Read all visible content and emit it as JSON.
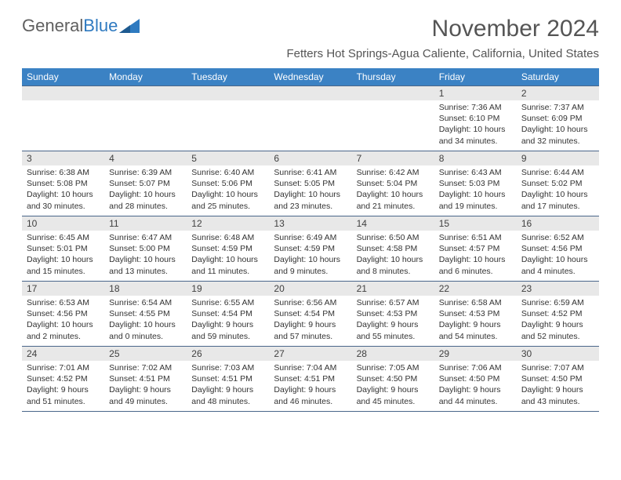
{
  "logo": {
    "text1": "General",
    "text2": "Blue"
  },
  "title": "November 2024",
  "location": "Fetters Hot Springs-Agua Caliente, California, United States",
  "dayNames": [
    "Sunday",
    "Monday",
    "Tuesday",
    "Wednesday",
    "Thursday",
    "Friday",
    "Saturday"
  ],
  "colors": {
    "header_bg": "#3b82c4",
    "header_text": "#ffffff",
    "daynum_bg": "#e8e8e8",
    "border": "#4a668a",
    "logo_gray": "#606060",
    "logo_blue": "#2f7ac0",
    "title_color": "#555555"
  },
  "weeks": [
    [
      {
        "num": "",
        "lines": []
      },
      {
        "num": "",
        "lines": []
      },
      {
        "num": "",
        "lines": []
      },
      {
        "num": "",
        "lines": []
      },
      {
        "num": "",
        "lines": []
      },
      {
        "num": "1",
        "lines": [
          "Sunrise: 7:36 AM",
          "Sunset: 6:10 PM",
          "Daylight: 10 hours and 34 minutes."
        ]
      },
      {
        "num": "2",
        "lines": [
          "Sunrise: 7:37 AM",
          "Sunset: 6:09 PM",
          "Daylight: 10 hours and 32 minutes."
        ]
      }
    ],
    [
      {
        "num": "3",
        "lines": [
          "Sunrise: 6:38 AM",
          "Sunset: 5:08 PM",
          "Daylight: 10 hours and 30 minutes."
        ]
      },
      {
        "num": "4",
        "lines": [
          "Sunrise: 6:39 AM",
          "Sunset: 5:07 PM",
          "Daylight: 10 hours and 28 minutes."
        ]
      },
      {
        "num": "5",
        "lines": [
          "Sunrise: 6:40 AM",
          "Sunset: 5:06 PM",
          "Daylight: 10 hours and 25 minutes."
        ]
      },
      {
        "num": "6",
        "lines": [
          "Sunrise: 6:41 AM",
          "Sunset: 5:05 PM",
          "Daylight: 10 hours and 23 minutes."
        ]
      },
      {
        "num": "7",
        "lines": [
          "Sunrise: 6:42 AM",
          "Sunset: 5:04 PM",
          "Daylight: 10 hours and 21 minutes."
        ]
      },
      {
        "num": "8",
        "lines": [
          "Sunrise: 6:43 AM",
          "Sunset: 5:03 PM",
          "Daylight: 10 hours and 19 minutes."
        ]
      },
      {
        "num": "9",
        "lines": [
          "Sunrise: 6:44 AM",
          "Sunset: 5:02 PM",
          "Daylight: 10 hours and 17 minutes."
        ]
      }
    ],
    [
      {
        "num": "10",
        "lines": [
          "Sunrise: 6:45 AM",
          "Sunset: 5:01 PM",
          "Daylight: 10 hours and 15 minutes."
        ]
      },
      {
        "num": "11",
        "lines": [
          "Sunrise: 6:47 AM",
          "Sunset: 5:00 PM",
          "Daylight: 10 hours and 13 minutes."
        ]
      },
      {
        "num": "12",
        "lines": [
          "Sunrise: 6:48 AM",
          "Sunset: 4:59 PM",
          "Daylight: 10 hours and 11 minutes."
        ]
      },
      {
        "num": "13",
        "lines": [
          "Sunrise: 6:49 AM",
          "Sunset: 4:59 PM",
          "Daylight: 10 hours and 9 minutes."
        ]
      },
      {
        "num": "14",
        "lines": [
          "Sunrise: 6:50 AM",
          "Sunset: 4:58 PM",
          "Daylight: 10 hours and 8 minutes."
        ]
      },
      {
        "num": "15",
        "lines": [
          "Sunrise: 6:51 AM",
          "Sunset: 4:57 PM",
          "Daylight: 10 hours and 6 minutes."
        ]
      },
      {
        "num": "16",
        "lines": [
          "Sunrise: 6:52 AM",
          "Sunset: 4:56 PM",
          "Daylight: 10 hours and 4 minutes."
        ]
      }
    ],
    [
      {
        "num": "17",
        "lines": [
          "Sunrise: 6:53 AM",
          "Sunset: 4:56 PM",
          "Daylight: 10 hours and 2 minutes."
        ]
      },
      {
        "num": "18",
        "lines": [
          "Sunrise: 6:54 AM",
          "Sunset: 4:55 PM",
          "Daylight: 10 hours and 0 minutes."
        ]
      },
      {
        "num": "19",
        "lines": [
          "Sunrise: 6:55 AM",
          "Sunset: 4:54 PM",
          "Daylight: 9 hours and 59 minutes."
        ]
      },
      {
        "num": "20",
        "lines": [
          "Sunrise: 6:56 AM",
          "Sunset: 4:54 PM",
          "Daylight: 9 hours and 57 minutes."
        ]
      },
      {
        "num": "21",
        "lines": [
          "Sunrise: 6:57 AM",
          "Sunset: 4:53 PM",
          "Daylight: 9 hours and 55 minutes."
        ]
      },
      {
        "num": "22",
        "lines": [
          "Sunrise: 6:58 AM",
          "Sunset: 4:53 PM",
          "Daylight: 9 hours and 54 minutes."
        ]
      },
      {
        "num": "23",
        "lines": [
          "Sunrise: 6:59 AM",
          "Sunset: 4:52 PM",
          "Daylight: 9 hours and 52 minutes."
        ]
      }
    ],
    [
      {
        "num": "24",
        "lines": [
          "Sunrise: 7:01 AM",
          "Sunset: 4:52 PM",
          "Daylight: 9 hours and 51 minutes."
        ]
      },
      {
        "num": "25",
        "lines": [
          "Sunrise: 7:02 AM",
          "Sunset: 4:51 PM",
          "Daylight: 9 hours and 49 minutes."
        ]
      },
      {
        "num": "26",
        "lines": [
          "Sunrise: 7:03 AM",
          "Sunset: 4:51 PM",
          "Daylight: 9 hours and 48 minutes."
        ]
      },
      {
        "num": "27",
        "lines": [
          "Sunrise: 7:04 AM",
          "Sunset: 4:51 PM",
          "Daylight: 9 hours and 46 minutes."
        ]
      },
      {
        "num": "28",
        "lines": [
          "Sunrise: 7:05 AM",
          "Sunset: 4:50 PM",
          "Daylight: 9 hours and 45 minutes."
        ]
      },
      {
        "num": "29",
        "lines": [
          "Sunrise: 7:06 AM",
          "Sunset: 4:50 PM",
          "Daylight: 9 hours and 44 minutes."
        ]
      },
      {
        "num": "30",
        "lines": [
          "Sunrise: 7:07 AM",
          "Sunset: 4:50 PM",
          "Daylight: 9 hours and 43 minutes."
        ]
      }
    ]
  ]
}
